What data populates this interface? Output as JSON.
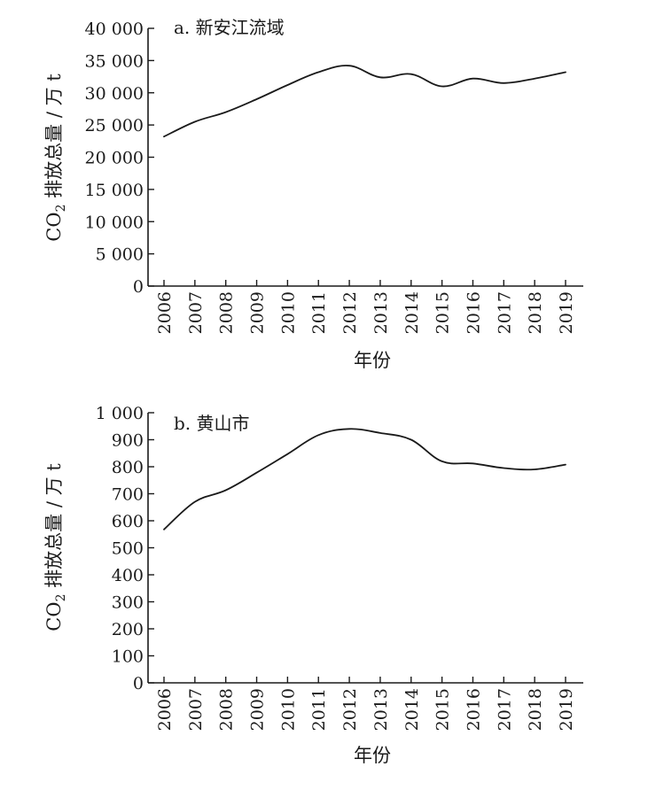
{
  "chart_data": [
    {
      "type": "line",
      "title": "a. 新安江流域",
      "ylabel_main": "CO",
      "ylabel_sub": "2",
      "ylabel_rest": " 排放总量 / 万 t",
      "xlabel": "年份",
      "ylim": [
        0,
        40000
      ],
      "yticks": [
        0,
        5000,
        10000,
        15000,
        20000,
        25000,
        30000,
        35000,
        40000
      ],
      "ytick_labels": [
        "0",
        "5 000",
        "10 000",
        "15 000",
        "20 000",
        "25 000",
        "30 000",
        "35 000",
        "40 000"
      ],
      "x": [
        "2006",
        "2007",
        "2008",
        "2009",
        "2010",
        "2011",
        "2012",
        "2013",
        "2014",
        "2015",
        "2016",
        "2017",
        "2018",
        "2019"
      ],
      "series": [
        {
          "values": [
            23200,
            25500,
            27000,
            29000,
            31200,
            33200,
            34200,
            32400,
            32900,
            31000,
            32200,
            31500,
            32200,
            33200
          ]
        }
      ]
    },
    {
      "type": "line",
      "title": "b. 黄山市",
      "ylabel_main": "CO",
      "ylabel_sub": "2",
      "ylabel_rest": " 排放总量 / 万 t",
      "xlabel": "年份",
      "ylim": [
        0,
        1000
      ],
      "yticks": [
        0,
        100,
        200,
        300,
        400,
        500,
        600,
        700,
        800,
        900,
        1000
      ],
      "ytick_labels": [
        "0",
        "100",
        "200",
        "300",
        "400",
        "500",
        "600",
        "700",
        "800",
        "900",
        "1 000"
      ],
      "x": [
        "2006",
        "2007",
        "2008",
        "2009",
        "2010",
        "2011",
        "2012",
        "2013",
        "2014",
        "2015",
        "2016",
        "2017",
        "2018",
        "2019"
      ],
      "series": [
        {
          "values": [
            568,
            670,
            713,
            778,
            847,
            917,
            940,
            925,
            900,
            820,
            812,
            795,
            790,
            808
          ]
        }
      ]
    }
  ]
}
